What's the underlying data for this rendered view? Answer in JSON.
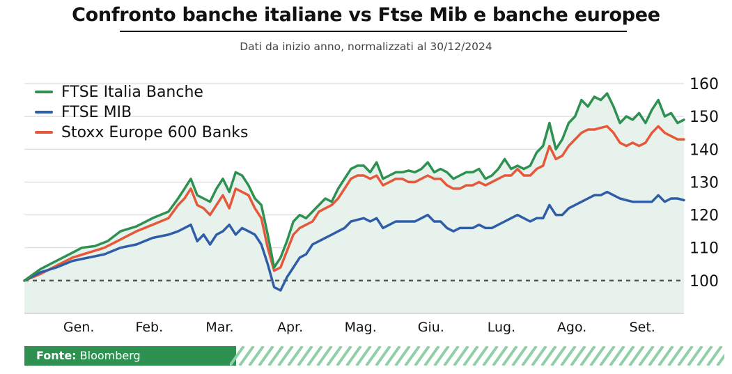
{
  "title": "Confronto banche italiane vs Ftse Mib e banche europee",
  "subtitle": "Dati da inizio anno, normalizzati al 30/12/2024",
  "footer": {
    "source_label": "Fonte:",
    "source_value": "Bloomberg"
  },
  "colors": {
    "green": "#2e9151",
    "blue": "#2f5da8",
    "orange": "#e5583a",
    "fill": "#e7f2ec",
    "grid": "#d5d5d5",
    "baseline": "#555555"
  },
  "chart_data": {
    "type": "line",
    "title": "Confronto banche italiane vs Ftse Mib e banche europee",
    "xlabel": "",
    "ylabel": "",
    "ylim": [
      90,
      160
    ],
    "yticks": [
      100,
      110,
      120,
      130,
      140,
      150,
      160
    ],
    "y_axis_side": "right",
    "baseline": 100,
    "x_range": [
      0,
      202
    ],
    "month_labels": [
      {
        "label": "Gen.",
        "x": 17
      },
      {
        "label": "Feb.",
        "x": 39
      },
      {
        "label": "Mar.",
        "x": 61
      },
      {
        "label": "Apr.",
        "x": 83
      },
      {
        "label": "Mag.",
        "x": 105
      },
      {
        "label": "Giu.",
        "x": 127
      },
      {
        "label": "Lug.",
        "x": 149
      },
      {
        "label": "Ago.",
        "x": 171
      },
      {
        "label": "Set.",
        "x": 193
      }
    ],
    "legend_position": "top-left",
    "series": [
      {
        "name": "FTSE Italia Banche",
        "color": "#2e9151",
        "points": [
          [
            0,
            100
          ],
          [
            5,
            103.5
          ],
          [
            10,
            106
          ],
          [
            15,
            108.5
          ],
          [
            18,
            110
          ],
          [
            22,
            110.5
          ],
          [
            26,
            112
          ],
          [
            30,
            115
          ],
          [
            35,
            116.5
          ],
          [
            40,
            119
          ],
          [
            45,
            121
          ],
          [
            48,
            125
          ],
          [
            50,
            128
          ],
          [
            52,
            131
          ],
          [
            54,
            126
          ],
          [
            56,
            125
          ],
          [
            58,
            124
          ],
          [
            60,
            128
          ],
          [
            62,
            131
          ],
          [
            64,
            127
          ],
          [
            66,
            133
          ],
          [
            68,
            132
          ],
          [
            70,
            129
          ],
          [
            72,
            125
          ],
          [
            74,
            123
          ],
          [
            76,
            114
          ],
          [
            78,
            104
          ],
          [
            80,
            107
          ],
          [
            82,
            112
          ],
          [
            84,
            118
          ],
          [
            86,
            120
          ],
          [
            88,
            119
          ],
          [
            90,
            121
          ],
          [
            92,
            123
          ],
          [
            94,
            125
          ],
          [
            96,
            124
          ],
          [
            98,
            128
          ],
          [
            100,
            131
          ],
          [
            102,
            134
          ],
          [
            104,
            135
          ],
          [
            106,
            135
          ],
          [
            108,
            133
          ],
          [
            110,
            136
          ],
          [
            112,
            131
          ],
          [
            114,
            132
          ],
          [
            116,
            133
          ],
          [
            118,
            133
          ],
          [
            120,
            133.5
          ],
          [
            122,
            133
          ],
          [
            124,
            134
          ],
          [
            126,
            136
          ],
          [
            128,
            133
          ],
          [
            130,
            134
          ],
          [
            132,
            133
          ],
          [
            134,
            131
          ],
          [
            136,
            132
          ],
          [
            138,
            133
          ],
          [
            140,
            133
          ],
          [
            142,
            134
          ],
          [
            144,
            131
          ],
          [
            146,
            132
          ],
          [
            148,
            134
          ],
          [
            150,
            137
          ],
          [
            152,
            134
          ],
          [
            154,
            135
          ],
          [
            156,
            134
          ],
          [
            158,
            135
          ],
          [
            160,
            139
          ],
          [
            162,
            141
          ],
          [
            164,
            148
          ],
          [
            166,
            140
          ],
          [
            168,
            143
          ],
          [
            170,
            148
          ],
          [
            172,
            150
          ],
          [
            174,
            155
          ],
          [
            176,
            153
          ],
          [
            178,
            156
          ],
          [
            180,
            155
          ],
          [
            182,
            157
          ],
          [
            184,
            153
          ],
          [
            186,
            148
          ],
          [
            188,
            150
          ],
          [
            190,
            149
          ],
          [
            192,
            151
          ],
          [
            194,
            148
          ],
          [
            196,
            152
          ],
          [
            198,
            155
          ],
          [
            200,
            150
          ],
          [
            202,
            151
          ],
          [
            204,
            148
          ],
          [
            206,
            149
          ]
        ]
      },
      {
        "name": "FTSE MIB",
        "color": "#2f5da8",
        "points": [
          [
            0,
            100
          ],
          [
            5,
            102.5
          ],
          [
            10,
            104
          ],
          [
            15,
            106
          ],
          [
            20,
            107
          ],
          [
            25,
            108
          ],
          [
            30,
            110
          ],
          [
            35,
            111
          ],
          [
            40,
            113
          ],
          [
            45,
            114
          ],
          [
            48,
            115
          ],
          [
            50,
            116
          ],
          [
            52,
            117
          ],
          [
            54,
            112
          ],
          [
            56,
            114
          ],
          [
            58,
            111
          ],
          [
            60,
            114
          ],
          [
            62,
            115
          ],
          [
            64,
            117
          ],
          [
            66,
            114
          ],
          [
            68,
            116
          ],
          [
            70,
            115
          ],
          [
            72,
            114
          ],
          [
            74,
            111
          ],
          [
            76,
            105
          ],
          [
            78,
            98
          ],
          [
            80,
            97
          ],
          [
            82,
            101
          ],
          [
            84,
            104
          ],
          [
            86,
            107
          ],
          [
            88,
            108
          ],
          [
            90,
            111
          ],
          [
            92,
            112
          ],
          [
            94,
            113
          ],
          [
            96,
            114
          ],
          [
            98,
            115
          ],
          [
            100,
            116
          ],
          [
            102,
            118
          ],
          [
            104,
            118.5
          ],
          [
            106,
            119
          ],
          [
            108,
            118
          ],
          [
            110,
            119
          ],
          [
            112,
            116
          ],
          [
            114,
            117
          ],
          [
            116,
            118
          ],
          [
            118,
            118
          ],
          [
            120,
            118
          ],
          [
            122,
            118
          ],
          [
            124,
            119
          ],
          [
            126,
            120
          ],
          [
            128,
            118
          ],
          [
            130,
            118
          ],
          [
            132,
            116
          ],
          [
            134,
            115
          ],
          [
            136,
            116
          ],
          [
            138,
            116
          ],
          [
            140,
            116
          ],
          [
            142,
            117
          ],
          [
            144,
            116
          ],
          [
            146,
            116
          ],
          [
            148,
            117
          ],
          [
            150,
            118
          ],
          [
            152,
            119
          ],
          [
            154,
            120
          ],
          [
            156,
            119
          ],
          [
            158,
            118
          ],
          [
            160,
            119
          ],
          [
            162,
            119
          ],
          [
            164,
            123
          ],
          [
            166,
            120
          ],
          [
            168,
            120
          ],
          [
            170,
            122
          ],
          [
            172,
            123
          ],
          [
            174,
            124
          ],
          [
            176,
            125
          ],
          [
            178,
            126
          ],
          [
            180,
            126
          ],
          [
            182,
            127
          ],
          [
            184,
            126
          ],
          [
            186,
            125
          ],
          [
            188,
            124.5
          ],
          [
            190,
            124
          ],
          [
            192,
            124
          ],
          [
            194,
            124
          ],
          [
            196,
            124
          ],
          [
            198,
            126
          ],
          [
            200,
            124
          ],
          [
            202,
            125
          ],
          [
            204,
            125
          ],
          [
            206,
            124.5
          ]
        ]
      },
      {
        "name": "Stoxx Europe 600 Banks",
        "color": "#e5583a",
        "points": [
          [
            0,
            100
          ],
          [
            5,
            102
          ],
          [
            10,
            104.5
          ],
          [
            15,
            107
          ],
          [
            20,
            108.5
          ],
          [
            25,
            110
          ],
          [
            30,
            112.5
          ],
          [
            35,
            115
          ],
          [
            40,
            117
          ],
          [
            45,
            119
          ],
          [
            48,
            123
          ],
          [
            50,
            125
          ],
          [
            52,
            128
          ],
          [
            54,
            123
          ],
          [
            56,
            122
          ],
          [
            58,
            120
          ],
          [
            60,
            123
          ],
          [
            62,
            126
          ],
          [
            64,
            122
          ],
          [
            66,
            128
          ],
          [
            68,
            127
          ],
          [
            70,
            126
          ],
          [
            72,
            122
          ],
          [
            74,
            119
          ],
          [
            76,
            110
          ],
          [
            78,
            103
          ],
          [
            80,
            104
          ],
          [
            82,
            109
          ],
          [
            84,
            114
          ],
          [
            86,
            116
          ],
          [
            88,
            117
          ],
          [
            90,
            118
          ],
          [
            92,
            121
          ],
          [
            94,
            122
          ],
          [
            96,
            123
          ],
          [
            98,
            125
          ],
          [
            100,
            128
          ],
          [
            102,
            131
          ],
          [
            104,
            132
          ],
          [
            106,
            132
          ],
          [
            108,
            131
          ],
          [
            110,
            132
          ],
          [
            112,
            129
          ],
          [
            114,
            130
          ],
          [
            116,
            131
          ],
          [
            118,
            131
          ],
          [
            120,
            130
          ],
          [
            122,
            130
          ],
          [
            124,
            131
          ],
          [
            126,
            132
          ],
          [
            128,
            131
          ],
          [
            130,
            131
          ],
          [
            132,
            129
          ],
          [
            134,
            128
          ],
          [
            136,
            128
          ],
          [
            138,
            129
          ],
          [
            140,
            129
          ],
          [
            142,
            130
          ],
          [
            144,
            129
          ],
          [
            146,
            130
          ],
          [
            148,
            131
          ],
          [
            150,
            132
          ],
          [
            152,
            132
          ],
          [
            154,
            134
          ],
          [
            156,
            132
          ],
          [
            158,
            132
          ],
          [
            160,
            134
          ],
          [
            162,
            135
          ],
          [
            164,
            141
          ],
          [
            166,
            137
          ],
          [
            168,
            138
          ],
          [
            170,
            141
          ],
          [
            172,
            143
          ],
          [
            174,
            145
          ],
          [
            176,
            146
          ],
          [
            178,
            146
          ],
          [
            180,
            146.5
          ],
          [
            182,
            147
          ],
          [
            184,
            145
          ],
          [
            186,
            142
          ],
          [
            188,
            141
          ],
          [
            190,
            142
          ],
          [
            192,
            141
          ],
          [
            194,
            142
          ],
          [
            196,
            145
          ],
          [
            198,
            147
          ],
          [
            200,
            145
          ],
          [
            202,
            144
          ],
          [
            204,
            143
          ],
          [
            206,
            143
          ]
        ]
      }
    ]
  }
}
